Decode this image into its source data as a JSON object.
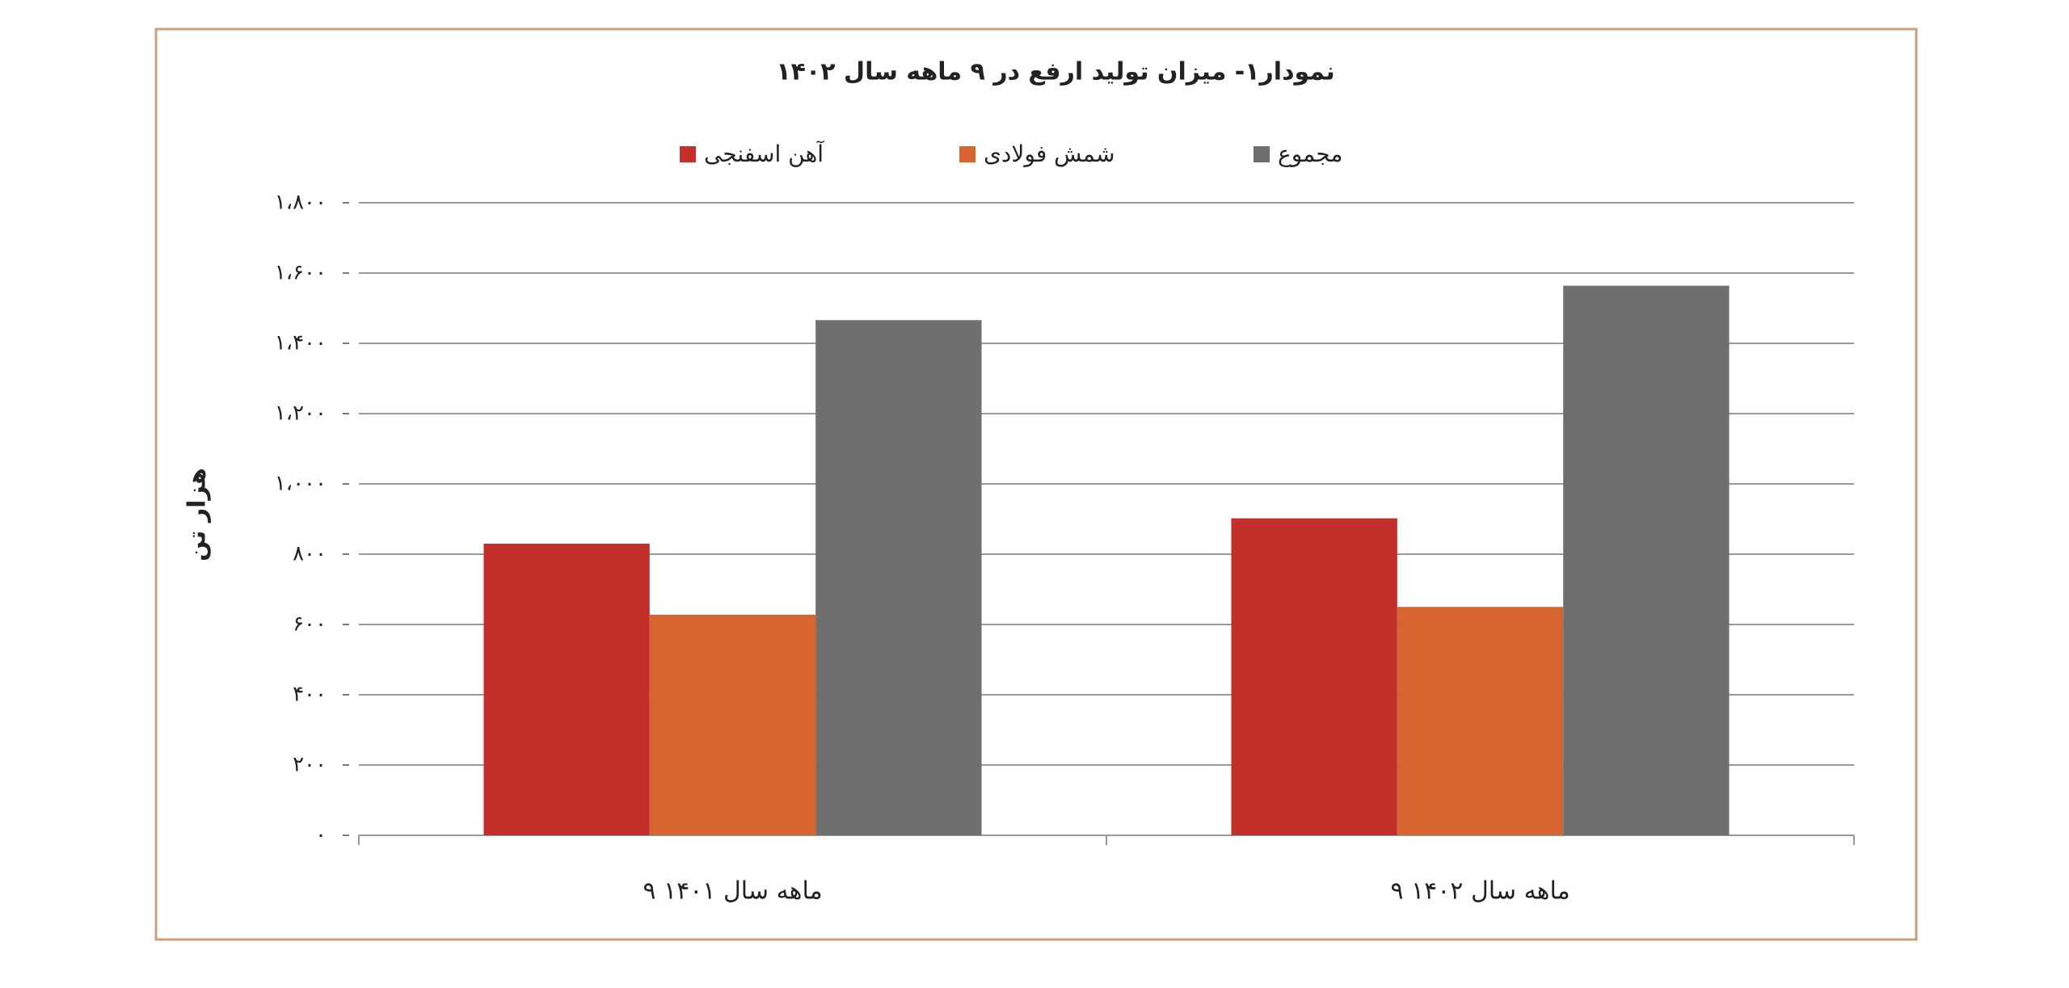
{
  "chart_data": {
    "type": "bar",
    "title": "نمودار۱- میزان تولید ارفع در ۹ ماهه سال ۱۴۰۲",
    "y_label": "هزار تن",
    "categories": [
      "۹ ماهه سال ۱۴۰۱",
      "۹ ماهه سال ۱۴۰۲"
    ],
    "series": [
      {
        "name": "آهن اسفنجی",
        "color": "#c3302c",
        "values": [
          830,
          902
        ]
      },
      {
        "name": "شمش فولادی",
        "color": "#d8652f",
        "values": [
          628,
          650
        ]
      },
      {
        "name": "مجموع",
        "color": "#6f6f6f",
        "values": [
          1466,
          1564
        ]
      }
    ],
    "ylim": [
      0,
      1800
    ],
    "yticks": [
      {
        "value": 0,
        "label": "۰"
      },
      {
        "value": 200,
        "label": "۲۰۰"
      },
      {
        "value": 400,
        "label": "۴۰۰"
      },
      {
        "value": 600,
        "label": "۶۰۰"
      },
      {
        "value": 800,
        "label": "۸۰۰"
      },
      {
        "value": 1000,
        "label": "۱،۰۰۰"
      },
      {
        "value": 1200,
        "label": "۱،۲۰۰"
      },
      {
        "value": 1400,
        "label": "۱،۴۰۰"
      },
      {
        "value": 1600,
        "label": "۱،۶۰۰"
      },
      {
        "value": 1800,
        "label": "۱،۸۰۰"
      }
    ],
    "grid": true
  }
}
